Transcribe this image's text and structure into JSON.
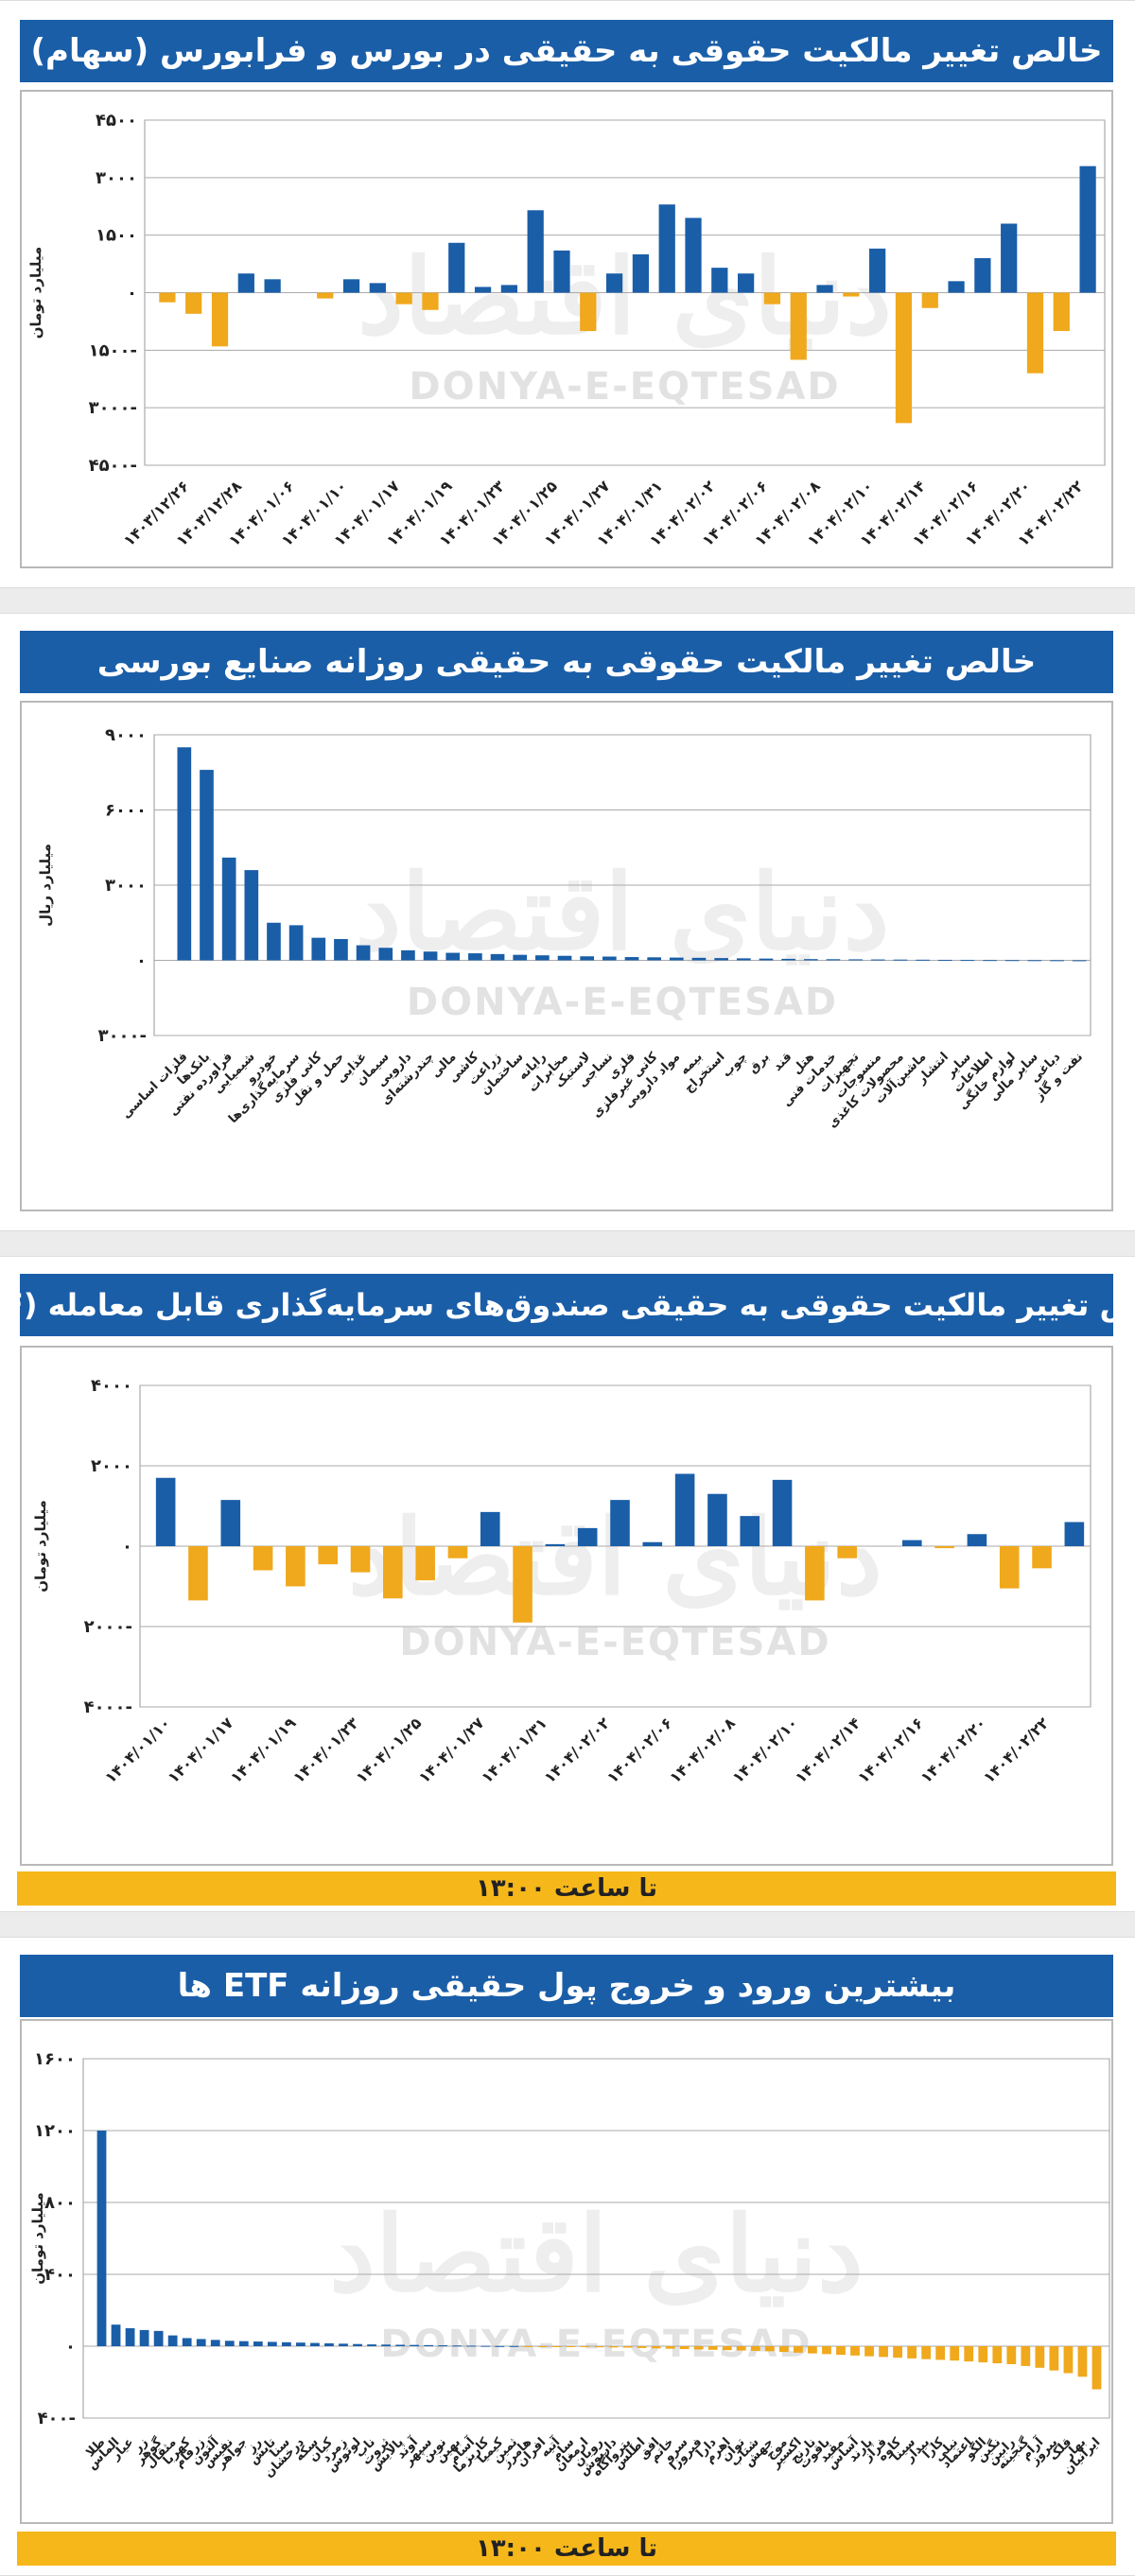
{
  "watermark": {
    "latin": "DONYA-E-EQTESAD",
    "arabic": "دنیای اقتصاد"
  },
  "colors": {
    "positive": "#1a5ea8",
    "negative": "#f0a81c",
    "title_bg": "#1a5ea8",
    "note_bg": "#f6b71a"
  },
  "chart_data": [
    {
      "type": "bar",
      "title": "خالص تغییر مالکیت حقوقی به حقیقی در بورس و فرابورس (سهام)",
      "ylabel": "میلیارد تومان",
      "ylim": [
        -4500,
        4500
      ],
      "yticks": [
        4500,
        3000,
        1500,
        0,
        -1500,
        -3000,
        -4500
      ],
      "grid": true,
      "tick_labels": [
        "۱۴۰۳/۱۲/۲۶",
        "۱۴۰۳/۱۲/۲۸",
        "۱۴۰۴/۰۱/۰۶",
        "۱۴۰۴/۰۱/۱۰",
        "۱۴۰۴/۰۱/۱۷",
        "۱۴۰۴/۰۱/۱۹",
        "۱۴۰۴/۰۱/۲۳",
        "۱۴۰۴/۰۱/۲۵",
        "۱۴۰۴/۰۱/۲۷",
        "۱۴۰۴/۰۱/۳۱",
        "۱۴۰۴/۰۲/۰۲",
        "۱۴۰۴/۰۲/۰۶",
        "۱۴۰۴/۰۲/۰۸",
        "۱۴۰۴/۰۲/۱۰",
        "۱۴۰۴/۰۲/۱۴",
        "۱۴۰۴/۰۲/۱۶",
        "۱۴۰۴/۰۲/۲۰",
        "۱۴۰۴/۰۲/۲۲"
      ],
      "values": [
        -250,
        -550,
        -1400,
        500,
        350,
        0,
        -150,
        350,
        250,
        -300,
        -450,
        1300,
        150,
        200,
        2150,
        1100,
        -1000,
        500,
        1000,
        2300,
        1950,
        650,
        500,
        -300,
        -1750,
        200,
        -100,
        1150,
        -3400,
        -400,
        300,
        900,
        1800,
        -2100,
        -1000,
        3300
      ]
    },
    {
      "type": "bar",
      "title": "خالص تغییر مالکیت حقوقی به حقیقی روزانه صنایع بورسی",
      "ylabel": "میلیارد ریال",
      "ylim": [
        -3000,
        9000
      ],
      "yticks": [
        9000,
        6000,
        3000,
        0,
        -3000
      ],
      "grid": true,
      "categories": [
        "فلزات اساسی",
        "بانک‌ها",
        "فراورده نفتی",
        "شیمیایی",
        "خودرو",
        "سرمایه‌گذاری‌ها",
        "کانی فلزی",
        "حمل و نقل",
        "غذایی",
        "سیمان",
        "دارویی",
        "چندرشته‌ای",
        "مالی",
        "کاشی",
        "زراعت",
        "ساختمان",
        "رایانه",
        "مخابرات",
        "لاستیک",
        "نساجی",
        "فلزی",
        "کانی غیرفلزی",
        "مواد دارویی",
        "بیمه",
        "استخراج",
        "چوب",
        "برق",
        "قند",
        "هتل",
        "خدمات فنی",
        "تجهیزات",
        "منسوجات",
        "محصولات کاغذی",
        "ماشین‌آلات",
        "انتشار",
        "سایر",
        "اطلاعات",
        "لوازم خانگی",
        "سایر مالی",
        "دباغی",
        "نفت و گاز"
      ],
      "values": [
        8500,
        7600,
        4100,
        3600,
        1500,
        1400,
        900,
        850,
        600,
        500,
        400,
        350,
        300,
        280,
        250,
        220,
        200,
        180,
        160,
        150,
        130,
        120,
        110,
        100,
        90,
        80,
        70,
        60,
        50,
        45,
        40,
        35,
        30,
        25,
        20,
        15,
        12,
        10,
        8,
        5,
        3
      ]
    },
    {
      "type": "bar",
      "title": "خالص تغییر مالکیت حقوقی به حقیقی صندوق‌های سرمایه‌گذاری قابل معامله (ETF)",
      "ylabel": "میلیارد تومان",
      "ylim": [
        -4000,
        4000
      ],
      "yticks": [
        4000,
        2000,
        0,
        -2000,
        -4000
      ],
      "grid": true,
      "note": "تا ساعت ۱۳:۰۰",
      "tick_labels": [
        "۱۴۰۴/۰۱/۱۰",
        "۱۴۰۴/۰۱/۱۷",
        "۱۴۰۴/۰۱/۱۹",
        "۱۴۰۴/۰۱/۲۳",
        "۱۴۰۴/۰۱/۲۵",
        "۱۴۰۴/۰۱/۲۷",
        "۱۴۰۴/۰۱/۳۱",
        "۱۴۰۴/۰۲/۰۲",
        "۱۴۰۴/۰۲/۰۶",
        "۱۴۰۴/۰۲/۰۸",
        "۱۴۰۴/۰۲/۱۰",
        "۱۴۰۴/۰۲/۱۴",
        "۱۴۰۴/۰۲/۱۶",
        "۱۴۰۴/۰۲/۲۰",
        "۱۴۰۴/۰۲/۲۲"
      ],
      "values": [
        1700,
        -1350,
        1150,
        -600,
        -1000,
        -450,
        -650,
        -1300,
        -850,
        -300,
        850,
        -1900,
        50,
        450,
        1150,
        100,
        1800,
        1300,
        750,
        1650,
        -1350,
        -300,
        0,
        150,
        -50,
        300,
        -1050,
        -550,
        600
      ]
    },
    {
      "type": "bar",
      "title": "بیشترین ورود و خروج پول حقیقی روزانه ETF ها",
      "ylabel": "میلیارد تومان",
      "ylim": [
        -400,
        1600
      ],
      "yticks": [
        1600,
        1200,
        800,
        400,
        0,
        -400
      ],
      "grid": true,
      "note": "تا ساعت ۱۳:۰۰",
      "categories": [
        "طلا",
        "الماس",
        "عیار",
        "زر",
        "گوهر",
        "مثقال",
        "کهربا",
        "زرفام",
        "آلتون",
        "نفیس",
        "جواهر",
        "رز",
        "تابش",
        "سنا",
        "درخشان",
        "سکه",
        "کیان",
        "زمرد",
        "لوتوس",
        "ناب",
        "ثروت",
        "پالایش",
        "آوند",
        "سپهر",
        "نوین",
        "بهین",
        "آسام",
        "کاریزما",
        "کیمیا",
        "ثمین",
        "هامرز",
        "افران",
        "آتیه",
        "سام",
        "ارمغان",
        "رویان",
        "داریوش",
        "پتروآگاه",
        "اطلس",
        "افق",
        "خاتم",
        "سرو",
        "فیروزا",
        "دارا",
        "اهرم",
        "توان",
        "شتاب",
        "جهش",
        "موج",
        "اکسیر",
        "نارنج",
        "یاقوت",
        "مفید",
        "آساس",
        "پارند",
        "فراز",
        "کاوه",
        "سینا",
        "بیدار",
        "کارا",
        "نیلی",
        "اعتماد",
        "الگو",
        "نگین",
        "رابین",
        "گنجینه",
        "آرام",
        "پیروز",
        "قلک",
        "بهار",
        "ایرانیان"
      ],
      "values": [
        1200,
        120,
        100,
        90,
        85,
        60,
        45,
        40,
        35,
        30,
        28,
        26,
        24,
        22,
        20,
        18,
        16,
        14,
        12,
        10,
        9,
        8,
        7,
        6,
        5,
        4,
        3,
        2,
        1,
        1,
        -1,
        -2,
        -3,
        -4,
        -5,
        -6,
        -7,
        -8,
        -10,
        -12,
        -14,
        -16,
        -18,
        -20,
        -22,
        -24,
        -26,
        -28,
        -32,
        -36,
        -40,
        -44,
        -48,
        -52,
        -56,
        -60,
        -64,
        -68,
        -72,
        -76,
        -80,
        -85,
        -90,
        -95,
        -100,
        -110,
        -120,
        -135,
        -150,
        -170,
        -240
      ]
    }
  ]
}
